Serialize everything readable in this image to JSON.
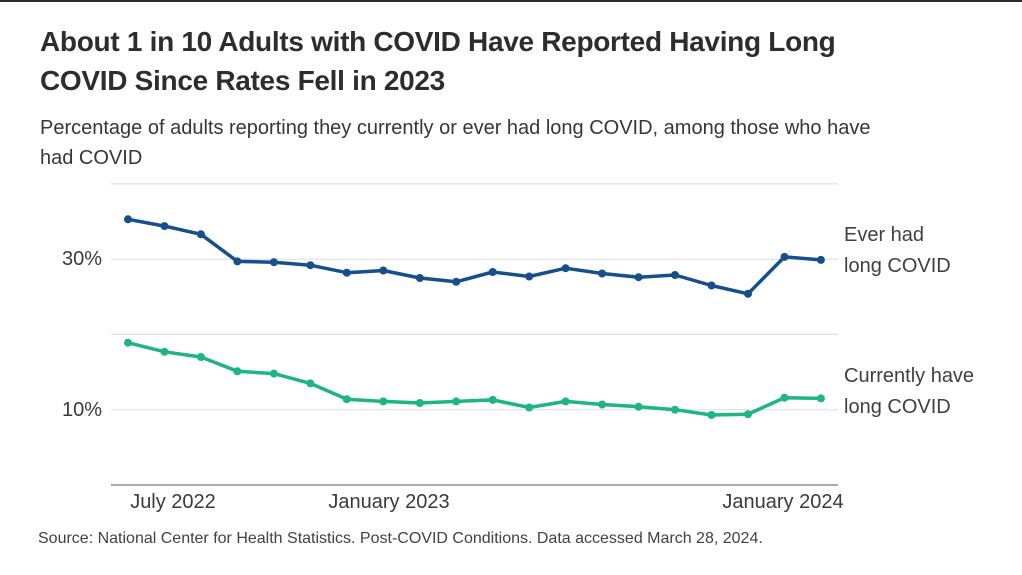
{
  "page": {
    "title_lines": [
      "About 1 in 10 Adults with COVID Have Reported Having Long",
      "COVID Since Rates Fell in 2023"
    ],
    "subtitle_lines": [
      "Percentage of adults reporting they currently or ever had long COVID, among those who have",
      "had COVID"
    ],
    "source": "Source: National Center for Health Statistics. Post-COVID Conditions. Data accessed March 28, 2024."
  },
  "chart_data": {
    "type": "line",
    "title": "About 1 in 10 Adults with COVID Have Reported Having Long COVID Since Rates Fell in 2023",
    "subtitle": "Percentage of adults reporting they currently or ever had long COVID, among those who have had COVID",
    "n_points": 20,
    "series": [
      {
        "name": "Ever had long COVID",
        "label_lines": [
          "Ever had",
          "long COVID"
        ],
        "color": "#164f8b",
        "values": [
          35.3,
          34.4,
          33.3,
          29.7,
          29.6,
          29.2,
          28.2,
          28.5,
          27.5,
          27.0,
          28.3,
          27.7,
          28.8,
          28.1,
          27.6,
          27.9,
          26.5,
          25.4,
          30.3,
          29.9
        ]
      },
      {
        "name": "Currently have long COVID",
        "label_lines": [
          "Currently have",
          "long COVID"
        ],
        "color": "#1cb583",
        "values": [
          18.9,
          17.7,
          17.0,
          15.1,
          14.8,
          13.5,
          11.4,
          11.1,
          10.9,
          11.1,
          11.3,
          10.3,
          11.1,
          10.7,
          10.4,
          10.0,
          9.3,
          9.4,
          11.6,
          11.5
        ]
      }
    ],
    "yticks": [
      {
        "value": 30,
        "label": "30%"
      },
      {
        "value": 10,
        "label": "10%"
      }
    ],
    "gridline_values": [
      40,
      30,
      20,
      10
    ],
    "xticks": [
      {
        "label": "July 2022"
      },
      {
        "label": "January 2023"
      },
      {
        "label": "January 2024"
      }
    ],
    "ylim": [
      0,
      42
    ],
    "grid": true,
    "legend_position": "right-of-lines"
  }
}
